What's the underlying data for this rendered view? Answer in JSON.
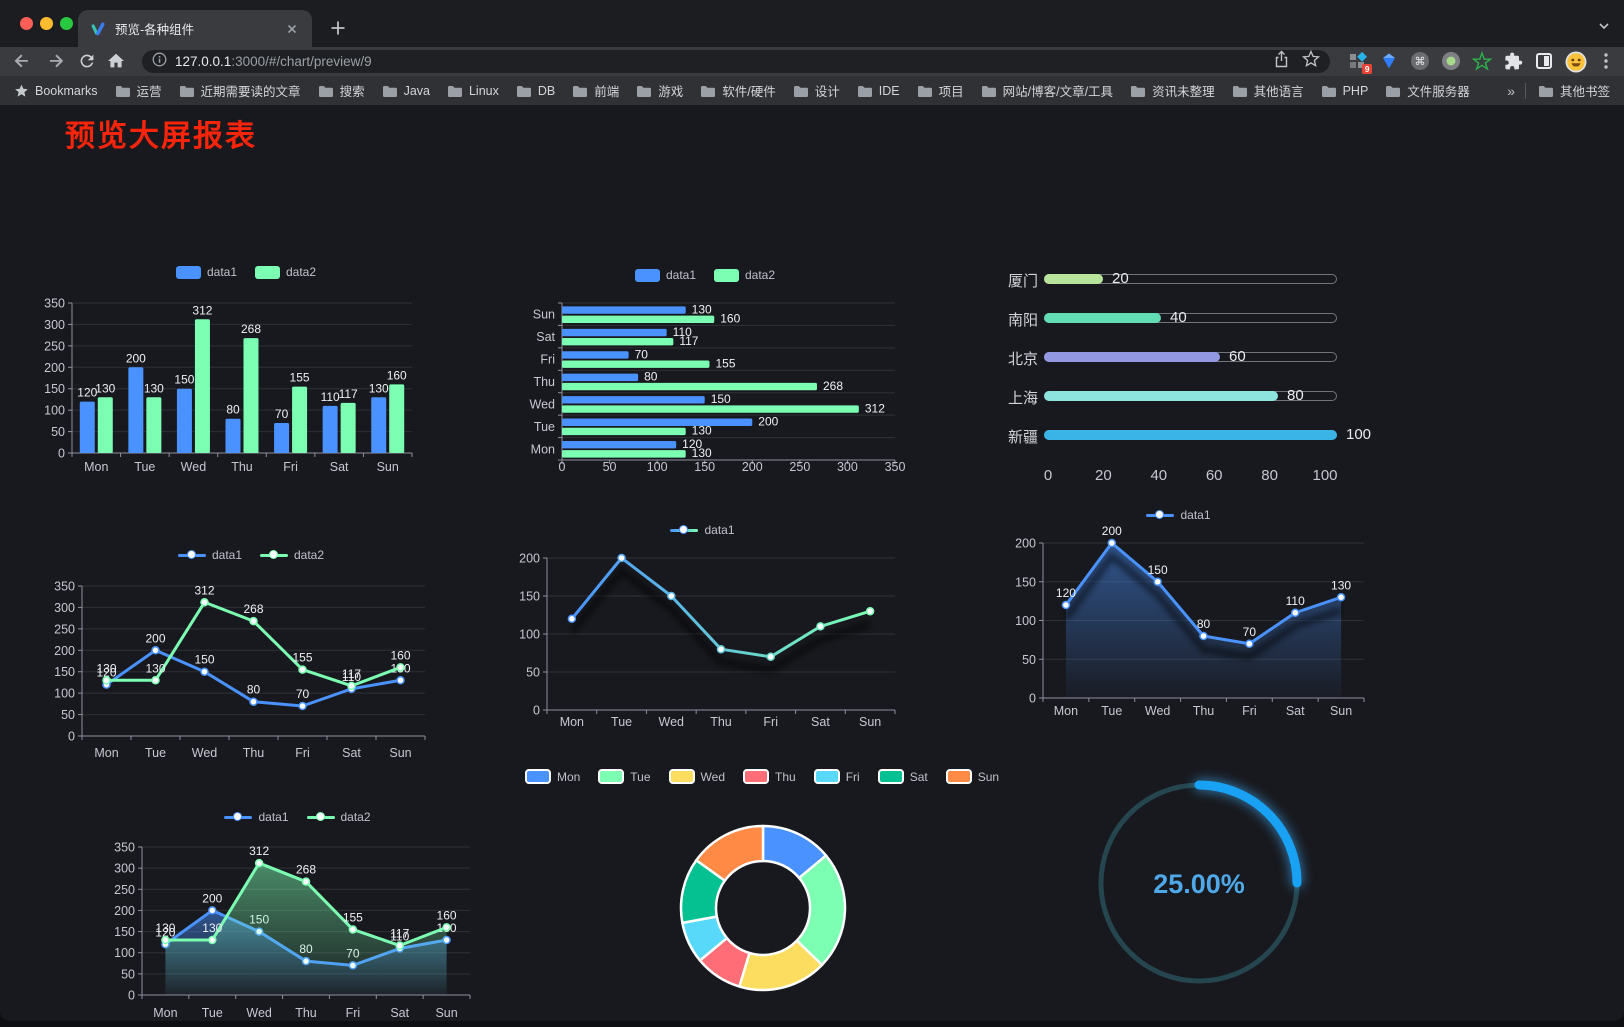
{
  "browser": {
    "tab": {
      "title": "预览-各种组件"
    },
    "url": {
      "host": "127.0.0.1",
      "rest": ":3000/#/chart/preview/9"
    },
    "extensions_badge": "9",
    "bookmarks_bar": {
      "root_label": "Bookmarks",
      "folders": [
        "运营",
        "近期需要读的文章",
        "搜索",
        "Java",
        "Linux",
        "DB",
        "前端",
        "游戏",
        "软件/硬件",
        "设计",
        "IDE",
        "项目",
        "网站/博客/文章/工具",
        "资讯未整理",
        "其他语言",
        "PHP",
        "文件服务器"
      ],
      "overflow": "»",
      "other": "其他书签"
    }
  },
  "page": {
    "title": "预览大屏报表",
    "title_color": "#f8240b"
  },
  "chart_data": [
    {
      "id": "bar-vertical",
      "type": "bar",
      "categories": [
        "Mon",
        "Tue",
        "Wed",
        "Thu",
        "Fri",
        "Sat",
        "Sun"
      ],
      "series": [
        {
          "name": "data1",
          "color": "#4992ff",
          "values": [
            120,
            200,
            150,
            80,
            70,
            110,
            130
          ]
        },
        {
          "name": "data2",
          "color": "#7cffb2",
          "values": [
            130,
            130,
            312,
            268,
            155,
            117,
            160
          ]
        }
      ],
      "ylim": [
        0,
        350
      ],
      "ystep": 50,
      "value_labels": true,
      "legend_position": "top",
      "grid": true
    },
    {
      "id": "bar-horizontal",
      "type": "bar-horizontal",
      "categories": [
        "Mon",
        "Tue",
        "Wed",
        "Thu",
        "Fri",
        "Sat",
        "Sun"
      ],
      "category_order": "reversed-top-to-bottom",
      "series": [
        {
          "name": "data1",
          "color": "#4992ff",
          "values": [
            120,
            200,
            150,
            80,
            70,
            110,
            130
          ]
        },
        {
          "name": "data2",
          "color": "#7cffb2",
          "values": [
            130,
            130,
            312,
            268,
            155,
            117,
            160
          ]
        }
      ],
      "xlim": [
        0,
        350
      ],
      "xstep": 50,
      "value_labels": true,
      "legend_position": "top"
    },
    {
      "id": "city-progress",
      "type": "progress-bars",
      "items": [
        {
          "label": "厦门",
          "value": 20,
          "color": "#b7e39a"
        },
        {
          "label": "南阳",
          "value": 40,
          "color": "#61dcb3"
        },
        {
          "label": "北京",
          "value": 60,
          "color": "#9398e2"
        },
        {
          "label": "上海",
          "value": 80,
          "color": "#8de3de"
        },
        {
          "label": "新疆",
          "value": 100,
          "color": "#3ab3e6"
        }
      ],
      "max": 100,
      "xticks": [
        0,
        20,
        40,
        60,
        80,
        100
      ]
    },
    {
      "id": "line-basic",
      "type": "line",
      "categories": [
        "Mon",
        "Tue",
        "Wed",
        "Thu",
        "Fri",
        "Sat",
        "Sun"
      ],
      "series": [
        {
          "name": "data1",
          "color": "#4992ff",
          "values": [
            120,
            200,
            150,
            80,
            70,
            110,
            130
          ]
        },
        {
          "name": "data2",
          "color": "#7cffb2",
          "values": [
            130,
            130,
            312,
            268,
            155,
            117,
            160
          ]
        }
      ],
      "ylim": [
        0,
        350
      ],
      "ystep": 50,
      "value_labels": true
    },
    {
      "id": "line-gradient",
      "type": "line",
      "categories": [
        "Mon",
        "Tue",
        "Wed",
        "Thu",
        "Fri",
        "Sat",
        "Sun"
      ],
      "series": [
        {
          "name": "data1",
          "gradient": [
            "#4992ff",
            "#7cffb2"
          ],
          "values": [
            120,
            200,
            150,
            80,
            70,
            110,
            130
          ]
        }
      ],
      "ylim": [
        0,
        200
      ],
      "ystep": 50,
      "value_labels": false,
      "shadow": true
    },
    {
      "id": "area-basic",
      "type": "area",
      "categories": [
        "Mon",
        "Tue",
        "Wed",
        "Thu",
        "Fri",
        "Sat",
        "Sun"
      ],
      "series": [
        {
          "name": "data1",
          "color": "#4992ff",
          "values": [
            120,
            200,
            150,
            80,
            70,
            110,
            130
          ]
        }
      ],
      "ylim": [
        0,
        200
      ],
      "ystep": 50,
      "value_labels": true,
      "shadow": true
    },
    {
      "id": "area-two",
      "type": "area",
      "categories": [
        "Mon",
        "Tue",
        "Wed",
        "Thu",
        "Fri",
        "Sat",
        "Sun"
      ],
      "series": [
        {
          "name": "data1",
          "color": "#4992ff",
          "values": [
            120,
            200,
            150,
            80,
            70,
            110,
            130
          ]
        },
        {
          "name": "data2",
          "color": "#7cffb2",
          "values": [
            130,
            130,
            312,
            268,
            155,
            117,
            160
          ]
        }
      ],
      "ylim": [
        0,
        350
      ],
      "ystep": 50,
      "value_labels": true
    },
    {
      "id": "donut",
      "type": "pie",
      "categories": [
        "Mon",
        "Tue",
        "Wed",
        "Thu",
        "Fri",
        "Sat",
        "Sun"
      ],
      "values": [
        120,
        200,
        150,
        80,
        70,
        110,
        130
      ],
      "colors": [
        "#4992ff",
        "#7cffb2",
        "#fddd60",
        "#ff6e76",
        "#58d9f9",
        "#05c091",
        "#ff8a45"
      ],
      "legend_position": "top",
      "inner_radius_ratio": 0.57,
      "border_color": "#ffffff"
    },
    {
      "id": "gauge",
      "type": "gauge",
      "value": 25,
      "max": 100,
      "display": "25.00%",
      "arc_color": "#19a2f3",
      "track_color": "#25454f",
      "text_color": "#4fa8e8"
    }
  ]
}
